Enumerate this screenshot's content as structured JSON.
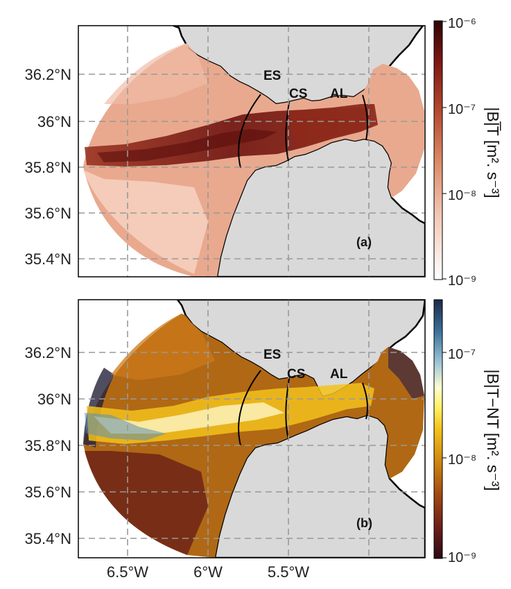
{
  "x_ticks": [
    "6.5°W",
    "6°W",
    "5.5°W"
  ],
  "y_ticks": [
    "36.2°N",
    "36°N",
    "35.8°N",
    "35.6°N",
    "35.4°N"
  ],
  "panel_a": {
    "label": "(a)",
    "regions": [
      "ES",
      "CS",
      "AL"
    ],
    "colorbar": {
      "ticks": [
        "10⁻⁶",
        "10⁻⁷",
        "10⁻⁸",
        "10⁻⁹"
      ],
      "title": "|B|̅T [m². s⁻³]",
      "colormap": [
        "#ffffff",
        "#f2c7b4",
        "#dd8c6a",
        "#b54a2f",
        "#7a1712",
        "#2e0505"
      ]
    }
  },
  "panel_b": {
    "label": "(b)",
    "regions": [
      "ES",
      "CS",
      "AL"
    ],
    "colorbar": {
      "ticks": [
        "10⁻⁷",
        "10⁻⁸",
        "10⁻⁹"
      ],
      "title": "|B|T−NT [m². s⁻³]",
      "colormap": [
        "#2b0a14",
        "#6b1f1a",
        "#a34a12",
        "#d08a10",
        "#f3c21c",
        "#fff060",
        "#fffdd0",
        "#9ac3d6",
        "#3a6f98",
        "#1d2a48"
      ]
    }
  },
  "colors": {
    "land": "#d9d9d9",
    "grid": "#999999",
    "coast": "#000000"
  }
}
